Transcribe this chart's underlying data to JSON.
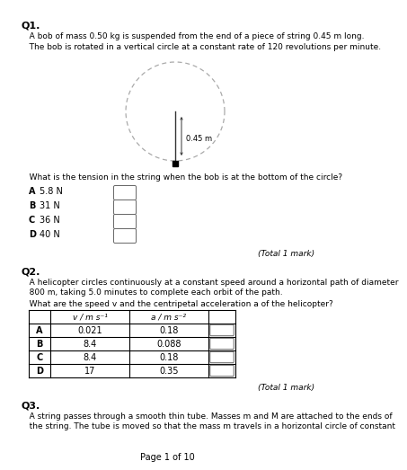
{
  "title": "Q1.",
  "q1_text_line1": "   A bob of mass 0.50 kg is suspended from the end of a piece of string 0.45 m long.",
  "q1_text_line2": "   The bob is rotated in a vertical circle at a constant rate of 120 revolutions per minute.",
  "q1_question": "   What is the tension in the string when the bob is at the bottom of the circle?",
  "q1_options": [
    [
      "A",
      "5.8 N"
    ],
    [
      "B",
      "31 N"
    ],
    [
      "C",
      "36 N"
    ],
    [
      "D",
      "40 N"
    ]
  ],
  "q1_mark": "(Total 1 mark)",
  "circle_label": "0.45 m",
  "q2_title": "Q2.",
  "q2_text_line1": "   A helicopter circles continuously at a constant speed around a horizontal path of diameter",
  "q2_text_line2": "   800 m, taking 5.0 minutes to complete each orbit of the path.",
  "q2_question": "   What are the speed v and the centripetal acceleration a of the helicopter?",
  "q2_col1": "v / m s⁻¹",
  "q2_col2": "a / m s⁻²",
  "q2_rows": [
    [
      "A",
      "0.021",
      "0.18"
    ],
    [
      "B",
      "8.4",
      "0.088"
    ],
    [
      "C",
      "8.4",
      "0.18"
    ],
    [
      "D",
      "17",
      "0.35"
    ]
  ],
  "q2_mark": "(Total 1 mark)",
  "q3_title": "Q3.",
  "q3_text_line1": "   A string passes through a smooth thin tube. Masses m and M are attached to the ends of",
  "q3_text_line2": "   the string. The tube is moved so that the mass m travels in a horizontal circle of constant",
  "page_footer": "Page 1 of 10",
  "bg_color": "#ffffff",
  "text_color": "#000000"
}
